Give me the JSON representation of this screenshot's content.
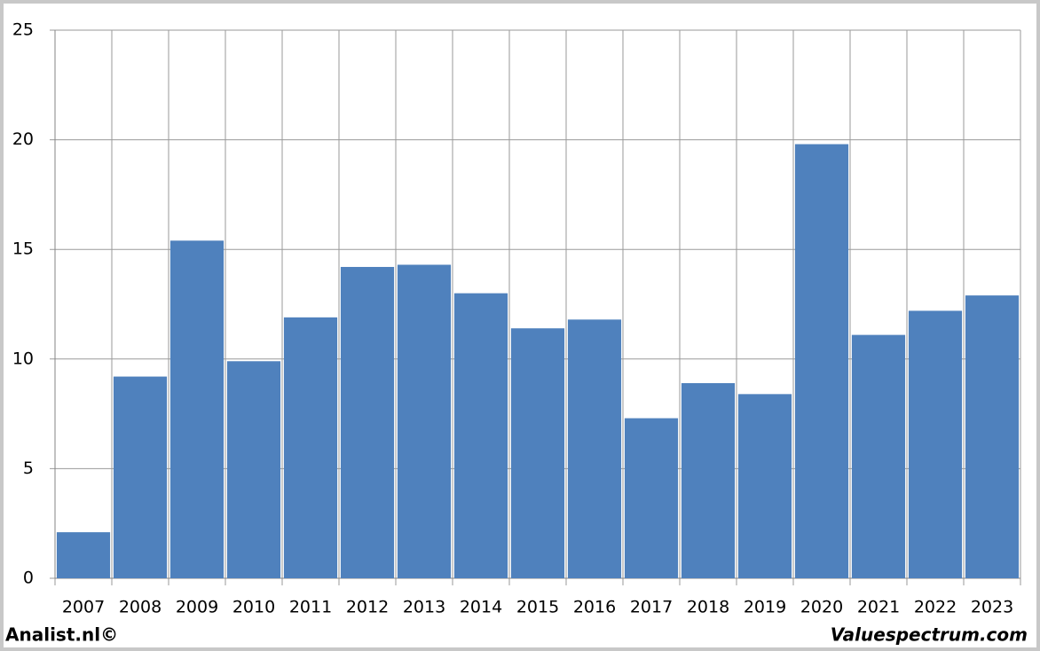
{
  "chart_data": {
    "type": "bar",
    "categories": [
      "2007",
      "2008",
      "2009",
      "2010",
      "2011",
      "2012",
      "2013",
      "2014",
      "2015",
      "2016",
      "2017",
      "2018",
      "2019",
      "2020",
      "2021",
      "2022",
      "2023"
    ],
    "values": [
      2.1,
      9.2,
      15.4,
      9.9,
      11.9,
      14.2,
      14.3,
      13.0,
      11.4,
      11.8,
      7.3,
      8.9,
      8.4,
      19.8,
      11.1,
      12.2,
      12.9
    ],
    "color": "#4f81bd",
    "ylim": [
      0,
      25
    ],
    "yticks": [
      0,
      5,
      10,
      15,
      20,
      25
    ],
    "grid": true
  },
  "footer": {
    "left": "Analist.nl©",
    "right": "Valuespectrum.com"
  }
}
